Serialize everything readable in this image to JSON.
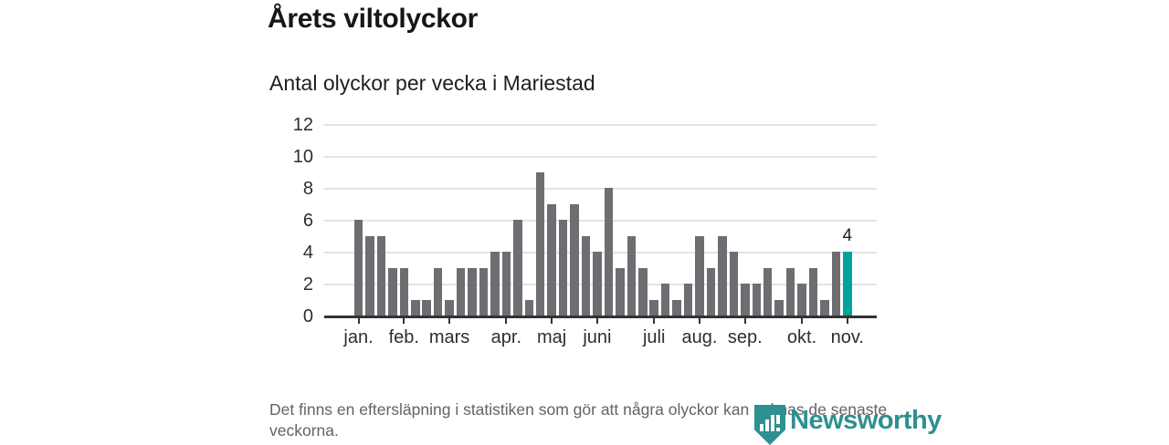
{
  "header": {
    "title": "Årets viltolyckor",
    "subtitle": "Antal olyckor per vecka i Mariestad"
  },
  "chart_data": {
    "type": "bar",
    "title": "Årets viltolyckor",
    "subtitle": "Antal olyckor per vecka i Mariestad",
    "x_unit": "vecka",
    "bar_count": 44,
    "values": [
      6,
      5,
      5,
      3,
      3,
      1,
      1,
      3,
      1,
      3,
      3,
      3,
      4,
      4,
      6,
      1,
      9,
      7,
      6,
      7,
      5,
      4,
      8,
      3,
      5,
      3,
      1,
      2,
      1,
      2,
      5,
      3,
      5,
      4,
      2,
      2,
      3,
      1,
      3,
      2,
      3,
      1,
      4,
      4
    ],
    "highlight_bar_index": 44,
    "annotation": {
      "text": "4",
      "bar_index": 44
    },
    "ylim": [
      0,
      12
    ],
    "yticks": [
      0,
      2,
      4,
      6,
      8,
      10,
      12
    ],
    "month_ticks": [
      {
        "label": "jan.",
        "bar_index": 1
      },
      {
        "label": "feb.",
        "bar_index": 5
      },
      {
        "label": "mars",
        "bar_index": 9
      },
      {
        "label": "apr.",
        "bar_index": 14
      },
      {
        "label": "maj",
        "bar_index": 18
      },
      {
        "label": "juni",
        "bar_index": 22
      },
      {
        "label": "juli",
        "bar_index": 27
      },
      {
        "label": "aug.",
        "bar_index": 31
      },
      {
        "label": "sep.",
        "bar_index": 35
      },
      {
        "label": "okt.",
        "bar_index": 40
      },
      {
        "label": "nov.",
        "bar_index": 44
      }
    ],
    "grid": true,
    "legend": "none"
  },
  "colors": {
    "bar": "#6f6d72",
    "highlight": "#00a49c",
    "axis": "#333333",
    "grid": "#e3e3e3",
    "tick_label": "#2e2e2e",
    "title": "#161616",
    "footer_text": "#636363",
    "logo": "#2e9090"
  },
  "footer": {
    "note": "Det finns en eftersläpning i statistiken som gör att några olyckor kan saknas de senaste veckorna.",
    "logo_text": "Newsworthy"
  }
}
